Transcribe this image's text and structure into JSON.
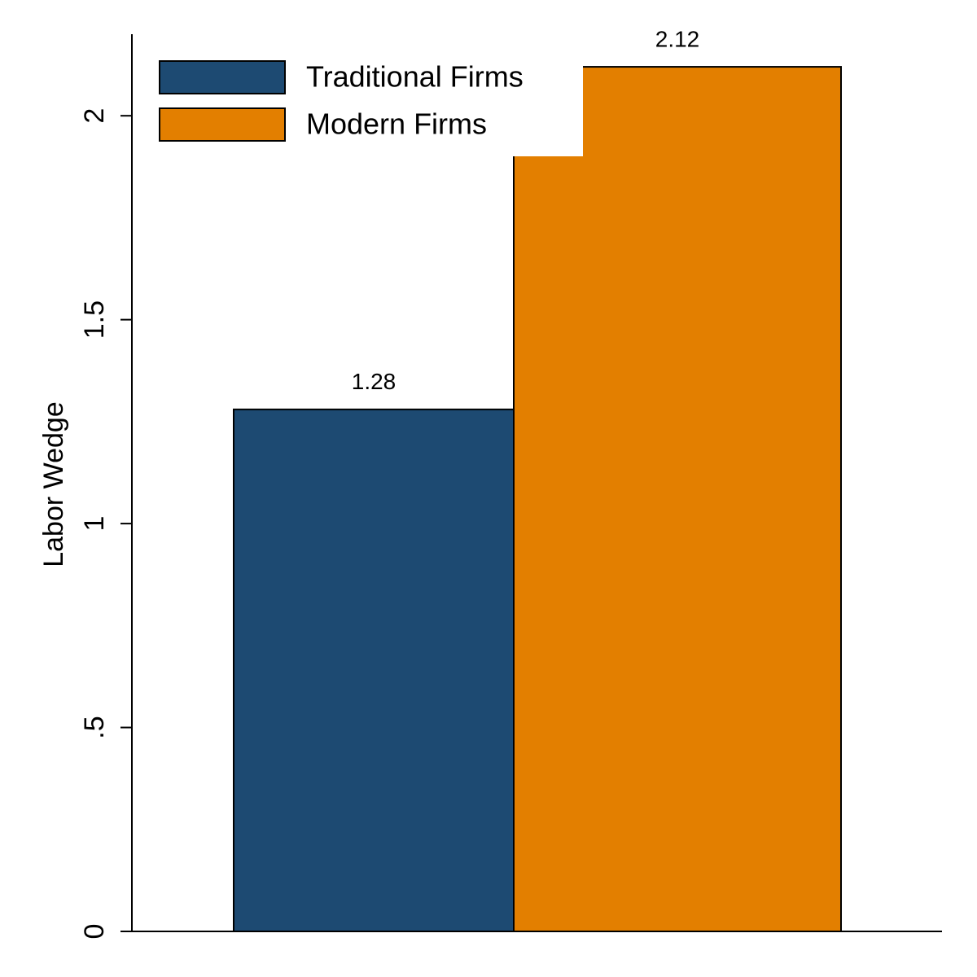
{
  "chart_data": {
    "type": "bar",
    "y_label": "Labor Wedge",
    "ylim": [
      0,
      2.2
    ],
    "yticks": [
      0,
      {
        "value": 0.5,
        "label": ".5"
      },
      1,
      1.5,
      2
    ],
    "series": [
      {
        "name": "Traditional Firms",
        "color": "#1d4a72",
        "values": [
          1.28
        ]
      },
      {
        "name": "Modern Firms",
        "color": "#e37f00",
        "values": [
          2.12
        ]
      }
    ],
    "legend": "upper-left"
  }
}
